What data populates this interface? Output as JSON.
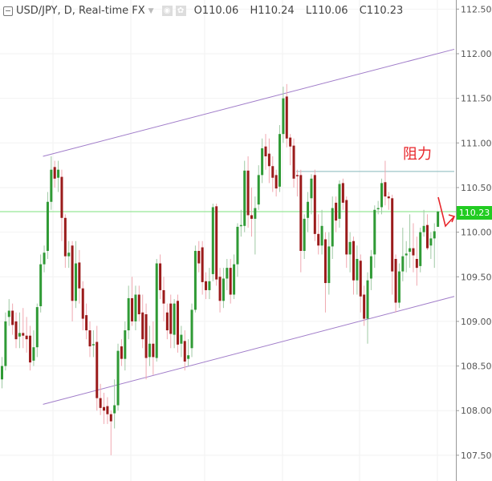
{
  "header": {
    "symbol_title": "USD/JPY, D, Real-time FX",
    "open": "O110.06",
    "high": "H110.24",
    "low": "L110.06",
    "close": "C110.23",
    "icons": [
      "collapse-icon",
      "dropdown-caret-icon",
      "eye-icon",
      "gear-icon"
    ]
  },
  "annotation_text": "阻力",
  "last_price_label": "110.23",
  "colors": {
    "up": "#2f9a35",
    "down": "#9b1b1b",
    "up_wick": "#9fc9a4",
    "down_wick": "#f0a8b0",
    "channel": "#a07cc9",
    "resistance": "#86b9bb",
    "last_price_line": "#7ee07e",
    "annotation": "#e8262b",
    "last_price_bg": "#22cc22"
  },
  "chart_data": {
    "type": "candlestick",
    "title": "USD/JPY, D, Real-time FX",
    "ylim": [
      107.4,
      112.6
    ],
    "y_ticks": [
      "112.50",
      "112.00",
      "111.50",
      "111.00",
      "110.50",
      "110.00",
      "109.50",
      "109.00",
      "108.50",
      "108.00",
      "107.50"
    ],
    "grid": true,
    "last_price": 110.23,
    "ohlc": [
      [
        108.35,
        108.6,
        108.25,
        108.5
      ],
      [
        108.5,
        109.1,
        108.45,
        109.0
      ],
      [
        109.05,
        109.25,
        108.95,
        109.12
      ],
      [
        109.12,
        109.2,
        108.85,
        108.96
      ],
      [
        109.0,
        109.1,
        108.7,
        108.8
      ],
      [
        108.83,
        109.1,
        108.7,
        108.87
      ],
      [
        108.87,
        109.15,
        108.7,
        108.84
      ],
      [
        108.84,
        109.05,
        108.65,
        108.8
      ],
      [
        108.84,
        108.95,
        108.45,
        108.54
      ],
      [
        108.56,
        108.9,
        108.5,
        108.71
      ],
      [
        108.71,
        109.2,
        108.6,
        109.16
      ],
      [
        109.17,
        109.75,
        109.1,
        109.64
      ],
      [
        109.64,
        109.85,
        109.55,
        109.77
      ],
      [
        109.79,
        110.45,
        109.7,
        110.34
      ],
      [
        110.34,
        110.85,
        110.25,
        110.7
      ],
      [
        110.73,
        110.8,
        110.5,
        110.6
      ],
      [
        110.61,
        110.8,
        110.45,
        110.7
      ],
      [
        110.62,
        110.7,
        109.9,
        110.16
      ],
      [
        110.16,
        110.2,
        109.6,
        109.73
      ],
      [
        109.73,
        109.9,
        109.6,
        109.77
      ],
      [
        109.85,
        109.9,
        109.0,
        109.23
      ],
      [
        109.23,
        109.9,
        109.15,
        109.65
      ],
      [
        109.66,
        109.8,
        109.2,
        109.37
      ],
      [
        109.37,
        109.45,
        108.9,
        109.03
      ],
      [
        109.07,
        109.2,
        108.8,
        108.9
      ],
      [
        108.9,
        109.0,
        108.6,
        108.72
      ],
      [
        108.74,
        108.9,
        108.6,
        108.745
      ],
      [
        108.77,
        108.95,
        108.0,
        108.14
      ],
      [
        108.14,
        108.3,
        107.95,
        108.03
      ],
      [
        108.04,
        108.2,
        107.85,
        108.0
      ],
      [
        108.05,
        108.15,
        107.85,
        107.96
      ],
      [
        107.96,
        108.0,
        107.5,
        107.88
      ],
      [
        107.97,
        108.35,
        107.8,
        108.06
      ],
      [
        108.06,
        108.75,
        108.0,
        108.67
      ],
      [
        108.72,
        108.8,
        108.5,
        108.58
      ],
      [
        108.58,
        109.0,
        108.45,
        108.9
      ],
      [
        108.9,
        109.4,
        108.8,
        109.26
      ],
      [
        109.26,
        109.5,
        108.95,
        109.0
      ],
      [
        109.0,
        109.4,
        108.9,
        109.3
      ],
      [
        109.3,
        109.4,
        109.0,
        109.08
      ],
      [
        109.1,
        109.3,
        108.7,
        108.8
      ],
      [
        109.08,
        109.2,
        108.35,
        108.59
      ],
      [
        108.6,
        108.95,
        108.5,
        108.75
      ],
      [
        108.75,
        109.0,
        108.4,
        108.6
      ],
      [
        108.59,
        109.7,
        108.55,
        109.65
      ],
      [
        109.65,
        109.75,
        109.25,
        109.35
      ],
      [
        109.35,
        109.5,
        109.0,
        109.2
      ],
      [
        109.1,
        109.2,
        108.8,
        108.9
      ],
      [
        109.2,
        109.3,
        108.7,
        108.86
      ],
      [
        108.85,
        109.25,
        108.7,
        109.2
      ],
      [
        109.23,
        109.3,
        108.65,
        108.74
      ],
      [
        108.75,
        108.95,
        108.6,
        108.85
      ],
      [
        108.78,
        108.9,
        108.45,
        108.55
      ],
      [
        108.58,
        108.8,
        108.5,
        108.62
      ],
      [
        108.7,
        109.2,
        108.6,
        109.13
      ],
      [
        109.13,
        109.85,
        109.1,
        109.79
      ],
      [
        109.79,
        109.9,
        109.55,
        109.65
      ],
      [
        109.83,
        109.9,
        109.3,
        109.44
      ],
      [
        109.45,
        109.55,
        109.25,
        109.35
      ],
      [
        109.35,
        109.6,
        109.25,
        109.45
      ],
      [
        109.53,
        110.32,
        109.45,
        110.28
      ],
      [
        110.29,
        110.32,
        109.4,
        109.47
      ],
      [
        109.5,
        109.6,
        109.1,
        109.23
      ],
      [
        109.23,
        109.6,
        109.15,
        109.48
      ],
      [
        109.48,
        109.7,
        109.35,
        109.6
      ],
      [
        109.6,
        109.7,
        109.2,
        109.3
      ],
      [
        109.3,
        109.75,
        109.25,
        109.64
      ],
      [
        109.64,
        110.1,
        109.5,
        110.06
      ],
      [
        110.07,
        110.25,
        109.95,
        110.08
      ],
      [
        110.07,
        110.8,
        110.0,
        110.69
      ],
      [
        110.69,
        110.85,
        110.05,
        110.19
      ],
      [
        110.19,
        110.5,
        109.95,
        110.15
      ],
      [
        110.15,
        110.4,
        109.75,
        110.27
      ],
      [
        110.31,
        110.75,
        110.25,
        110.64
      ],
      [
        110.64,
        111.05,
        110.55,
        110.94
      ],
      [
        110.96,
        111.1,
        110.7,
        110.85
      ],
      [
        110.88,
        111.05,
        110.55,
        110.74
      ],
      [
        110.74,
        110.85,
        110.45,
        110.61
      ],
      [
        110.64,
        110.7,
        110.4,
        110.49
      ],
      [
        110.51,
        111.2,
        110.45,
        111.1
      ],
      [
        111.1,
        111.63,
        111.0,
        111.5
      ],
      [
        111.52,
        111.66,
        110.95,
        111.05
      ],
      [
        111.06,
        111.1,
        110.75,
        110.96
      ],
      [
        110.97,
        111.05,
        110.5,
        110.6
      ],
      [
        110.64,
        110.7,
        110.4,
        110.635
      ],
      [
        110.64,
        110.7,
        109.55,
        109.79
      ],
      [
        109.79,
        110.2,
        109.7,
        110.15
      ],
      [
        110.16,
        110.45,
        110.0,
        110.34
      ],
      [
        110.38,
        110.65,
        110.2,
        110.6
      ],
      [
        110.64,
        110.7,
        109.9,
        109.98
      ],
      [
        109.98,
        110.2,
        109.75,
        109.85
      ],
      [
        109.85,
        110.25,
        109.75,
        110.07
      ],
      [
        109.92,
        110.0,
        109.1,
        109.43
      ],
      [
        109.43,
        110.0,
        109.3,
        109.84
      ],
      [
        109.84,
        110.4,
        109.7,
        110.27
      ],
      [
        110.33,
        110.4,
        110.0,
        110.13
      ],
      [
        110.15,
        110.58,
        110.05,
        110.54
      ],
      [
        110.55,
        110.6,
        110.25,
        110.33
      ],
      [
        110.36,
        110.4,
        109.6,
        109.75
      ],
      [
        109.75,
        110.0,
        109.55,
        109.89
      ],
      [
        109.9,
        109.95,
        109.3,
        109.46
      ],
      [
        109.46,
        109.85,
        109.3,
        109.7
      ],
      [
        109.68,
        109.75,
        109.1,
        109.28
      ],
      [
        109.3,
        109.4,
        108.95,
        109.03
      ],
      [
        109.03,
        109.55,
        108.75,
        109.46
      ],
      [
        109.48,
        109.8,
        109.35,
        109.73
      ],
      [
        109.75,
        110.3,
        109.6,
        110.25
      ],
      [
        110.26,
        110.35,
        110.2,
        110.27
      ],
      [
        110.28,
        110.6,
        110.2,
        110.55
      ],
      [
        110.56,
        110.8,
        110.3,
        110.4
      ],
      [
        110.4,
        110.45,
        110.25,
        110.38
      ],
      [
        110.38,
        110.42,
        109.3,
        109.56
      ],
      [
        109.7,
        109.75,
        109.1,
        109.21
      ],
      [
        109.21,
        109.65,
        109.15,
        109.56
      ],
      [
        109.56,
        110.05,
        109.45,
        109.73
      ],
      [
        109.74,
        109.9,
        109.55,
        109.76
      ],
      [
        109.78,
        110.2,
        109.6,
        109.82
      ],
      [
        109.82,
        110.1,
        109.55,
        109.74
      ],
      [
        109.7,
        109.95,
        109.4,
        109.6
      ],
      [
        109.62,
        110.05,
        109.55,
        110.0
      ],
      [
        110.0,
        110.25,
        109.95,
        110.07
      ],
      [
        110.08,
        110.2,
        109.8,
        109.82
      ],
      [
        109.85,
        110.0,
        109.7,
        109.93
      ],
      [
        109.93,
        110.1,
        109.6,
        110.01
      ],
      [
        110.06,
        110.24,
        110.06,
        110.23
      ]
    ],
    "drawings": {
      "channel_upper": {
        "from": {
          "bar": 12,
          "price": 110.85
        },
        "to": {
          "bar": 129,
          "price": 112.05
        }
      },
      "channel_lower": {
        "from": {
          "bar": 12,
          "price": 108.07
        },
        "to": {
          "bar": 129,
          "price": 109.28
        }
      },
      "resistance": {
        "from": {
          "bar": 84,
          "price": 110.68
        },
        "to": {
          "bar": 129,
          "price": 110.68
        },
        "label": "阻力"
      }
    }
  }
}
